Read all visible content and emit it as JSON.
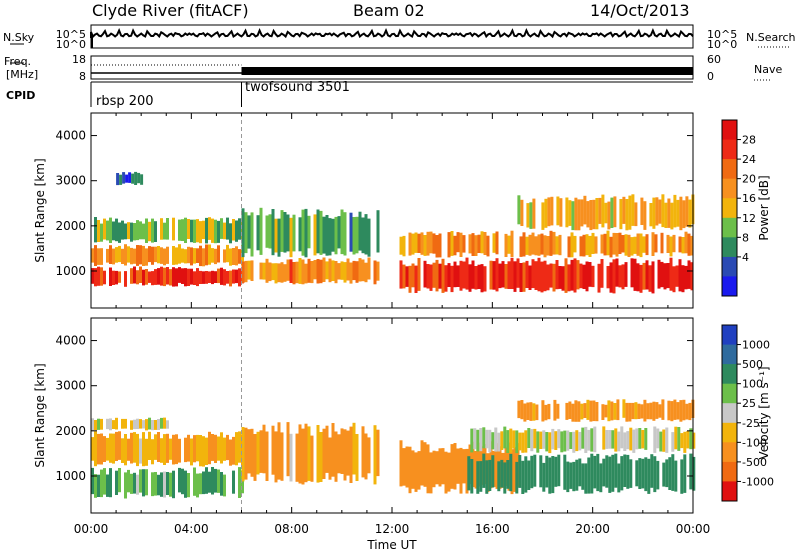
{
  "header": {
    "station": "Clyde River (fitACF)",
    "beam": "Beam 02",
    "date": "14/Oct/2013"
  },
  "noise_panel": {
    "left_label": "N.Sky",
    "right_label": "N.Search",
    "left_ticks": [
      "10^5",
      "10^0"
    ],
    "right_ticks": [
      "10^5",
      "10^0"
    ]
  },
  "freq_panel": {
    "left_label_top": "Freq.",
    "left_label_bottom": "[MHz]",
    "right_label": "Nave",
    "left_ticks": [
      "18",
      "8"
    ],
    "right_ticks": [
      "60",
      "0"
    ]
  },
  "cpid": {
    "label": "CPID",
    "segments": [
      {
        "name": "rbsp 200",
        "start_hour": 0
      },
      {
        "name": "twofsound 3501",
        "start_hour": 6
      }
    ]
  },
  "colors": {
    "power": [
      "#1a1aee",
      "#2a4ab4",
      "#2e8a5e",
      "#6cbf4a",
      "#f2b40c",
      "#f7901f",
      "#f06a12",
      "#ee2a16",
      "#e01010"
    ],
    "velocity": [
      "#2040c0",
      "#2f6b9e",
      "#2e8a5e",
      "#6cbf4a",
      "#c8c8c8",
      "#f2b40c",
      "#f7901f",
      "#f06a12",
      "#e01010"
    ]
  },
  "chart_data": [
    {
      "type": "heatmap",
      "title": "Power",
      "xlabel": "Time UT",
      "ylabel": "Slant Range [km]",
      "xlim": [
        0,
        24
      ],
      "ylim": [
        180,
        4500
      ],
      "x_ticks": [
        "00:00",
        "04:00",
        "08:00",
        "12:00",
        "16:00",
        "20:00",
        "00:00"
      ],
      "y_ticks": [
        1000,
        2000,
        3000,
        4000
      ],
      "colorbar": {
        "label": "Power [dB]",
        "ticks": [
          "4",
          "8",
          "12",
          "16",
          "20",
          "24",
          "28"
        ],
        "range": [
          0,
          30
        ]
      },
      "bands": [
        {
          "x_range": [
            0,
            6
          ],
          "range_km": [
            650,
            1100
          ],
          "value": 26
        },
        {
          "x_range": [
            0,
            6
          ],
          "range_km": [
            1100,
            1600
          ],
          "value": 18
        },
        {
          "x_range": [
            0,
            6
          ],
          "range_km": [
            1600,
            2200
          ],
          "value": 12
        },
        {
          "x_range": [
            6,
            11.5
          ],
          "range_km": [
            700,
            1300
          ],
          "value": 20
        },
        {
          "x_range": [
            6,
            11.5
          ],
          "range_km": [
            1300,
            2400
          ],
          "value": 10
        },
        {
          "x_range": [
            12.3,
            24
          ],
          "range_km": [
            500,
            1300
          ],
          "value": 26
        },
        {
          "x_range": [
            12.3,
            24
          ],
          "range_km": [
            1300,
            1900
          ],
          "value": 18
        },
        {
          "x_range": [
            17,
            24
          ],
          "range_km": [
            1900,
            2700
          ],
          "value": 16
        },
        {
          "x_range": [
            1,
            2
          ],
          "range_km": [
            2900,
            3200
          ],
          "value": 5
        }
      ]
    },
    {
      "type": "heatmap",
      "title": "Velocity",
      "xlabel": "Time UT",
      "ylabel": "Slant Range [km]",
      "xlim": [
        0,
        24
      ],
      "ylim": [
        180,
        4500
      ],
      "x_ticks": [
        "00:00",
        "04:00",
        "08:00",
        "12:00",
        "16:00",
        "20:00",
        "00:00"
      ],
      "y_ticks": [
        1000,
        2000,
        3000,
        4000
      ],
      "colorbar": {
        "label": "Velocity [m s⁻¹]",
        "ticks": [
          "1000",
          "500",
          "100",
          "25",
          "-25",
          "-100",
          "-500",
          "-1000"
        ]
      },
      "bands": [
        {
          "x_range": [
            0,
            6
          ],
          "range_km": [
            500,
            1200
          ],
          "value": 100
        },
        {
          "x_range": [
            0,
            6
          ],
          "range_km": [
            1200,
            2000
          ],
          "value": -100
        },
        {
          "x_range": [
            0,
            3
          ],
          "range_km": [
            2000,
            2300
          ],
          "value": 0
        },
        {
          "x_range": [
            6,
            11.5
          ],
          "range_km": [
            800,
            2200
          ],
          "value": -100
        },
        {
          "x_range": [
            12.3,
            17
          ],
          "range_km": [
            600,
            1800
          ],
          "value": -200
        },
        {
          "x_range": [
            15,
            24
          ],
          "range_km": [
            600,
            1500
          ],
          "value": 400
        },
        {
          "x_range": [
            15,
            24
          ],
          "range_km": [
            1500,
            2100
          ],
          "value": 0
        },
        {
          "x_range": [
            17,
            24
          ],
          "range_km": [
            2200,
            2700
          ],
          "value": -150
        }
      ]
    }
  ]
}
